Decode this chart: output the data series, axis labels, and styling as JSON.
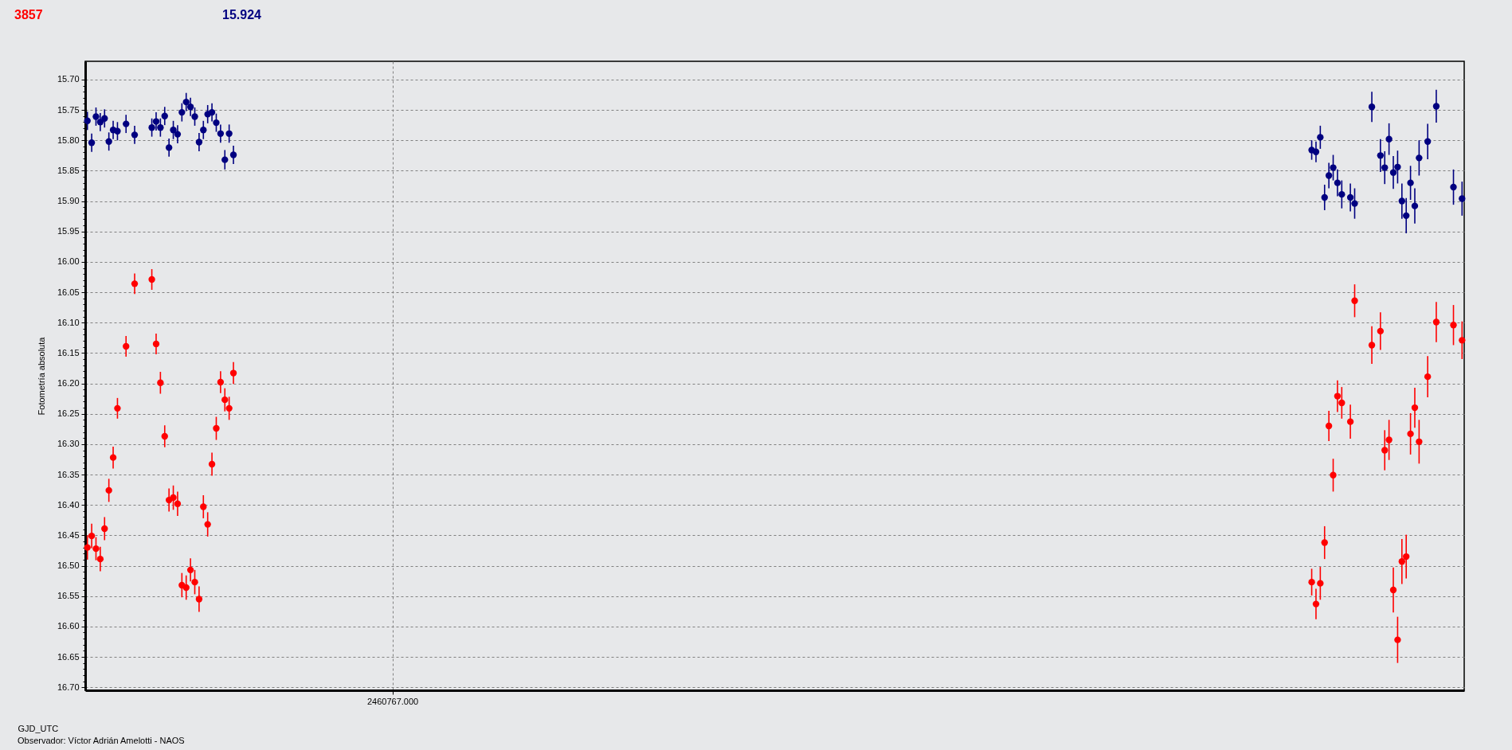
{
  "chart_data": {
    "type": "scatter",
    "ylabel": "Fotometría absoluta",
    "xlabel": "GJD_UTC",
    "annotations": [
      "Observador: Víctor Adrián Amelotti - NAOS"
    ],
    "categories": [
      null,
      null,
      null,
      null,
      null,
      null,
      null,
      null,
      null,
      null,
      null,
      null,
      null,
      null,
      null,
      null,
      null,
      null,
      null,
      null,
      null,
      null,
      null,
      null,
      null,
      null,
      null,
      null,
      null,
      null,
      null,
      null,
      null,
      null,
      null,
      null,
      null,
      null,
      null,
      null,
      null,
      null,
      null,
      null,
      null,
      null,
      null,
      null,
      null,
      null,
      null,
      null,
      null,
      null,
      null,
      null,
      null,
      null,
      null,
      null,
      null,
      null,
      null,
      null,
      null,
      null,
      null,
      null,
      null,
      null,
      null,
      "2460767.000",
      null,
      null,
      null,
      null,
      null,
      null,
      null,
      null,
      null,
      null,
      null,
      null,
      null,
      null,
      null,
      null,
      null,
      null,
      null,
      null,
      null,
      null,
      null,
      null,
      null,
      null,
      null,
      null,
      null,
      null,
      null,
      null,
      null,
      null,
      null,
      null,
      null,
      null,
      null,
      null,
      null,
      null,
      null,
      null,
      null,
      null,
      null,
      null,
      null,
      null,
      null,
      null,
      null,
      null,
      null,
      null,
      null,
      null,
      null,
      null,
      null,
      null,
      null,
      null,
      null,
      null,
      null,
      null,
      null,
      null,
      null,
      null,
      null,
      null,
      null,
      null,
      null,
      null,
      null,
      null,
      null,
      null,
      null,
      null,
      null,
      null,
      null,
      null,
      null,
      null,
      null,
      null,
      null,
      null,
      null,
      null,
      null,
      null,
      null,
      null,
      null,
      null,
      null,
      null,
      null,
      null,
      null,
      null,
      null,
      null,
      null,
      null,
      null,
      null,
      null,
      null,
      null,
      null,
      null,
      null,
      null,
      null,
      null,
      null,
      null,
      null,
      null,
      null,
      null,
      null,
      null,
      null,
      null,
      null,
      null,
      null,
      null,
      null,
      null,
      null,
      null,
      null,
      null,
      null,
      null,
      null,
      null,
      null,
      null,
      null,
      null,
      null,
      null,
      null,
      null,
      null,
      null,
      null,
      null,
      null,
      null,
      null,
      null,
      null,
      null,
      null,
      null,
      null,
      null,
      null,
      null,
      null,
      null,
      null,
      null,
      null,
      null,
      null,
      null,
      null,
      null,
      null,
      null,
      null,
      null,
      null,
      null,
      null,
      null,
      null,
      null,
      null,
      null,
      null,
      null,
      null,
      null,
      null,
      null,
      null,
      null,
      null,
      null,
      null,
      null,
      null,
      null,
      null,
      null,
      null,
      null,
      null,
      null,
      null,
      null,
      null,
      null,
      null,
      null,
      null,
      null,
      null,
      null,
      null,
      null,
      null,
      null,
      null,
      null,
      null,
      null,
      null,
      null,
      null,
      null,
      null,
      null,
      null,
      null,
      null,
      null,
      null,
      null,
      null,
      null,
      null,
      null,
      null,
      null
    ],
    "series": [
      {
        "name": "3857",
        "color": "#ff0000",
        "values": [
          16.47,
          16.451,
          16.472,
          16.489,
          16.439,
          16.376,
          16.322,
          16.241,
          null,
          16.139,
          null,
          16.036,
          null,
          null,
          null,
          16.029,
          16.135,
          16.199,
          16.287,
          16.392,
          16.388,
          16.398,
          16.532,
          16.536,
          16.507,
          16.527,
          16.555,
          16.403,
          16.432,
          16.333,
          16.274,
          16.198,
          16.227,
          16.241,
          16.183,
          null,
          null,
          null,
          null,
          null,
          null,
          null,
          null,
          null,
          null,
          null,
          null,
          null,
          null,
          null,
          null,
          null,
          null,
          null,
          null,
          null,
          null,
          null,
          null,
          null,
          null,
          null,
          null,
          null,
          null,
          null,
          null,
          null,
          null,
          null,
          null,
          null,
          null,
          null,
          null,
          null,
          null,
          null,
          null,
          null,
          null,
          null,
          null,
          null,
          null,
          null,
          null,
          null,
          null,
          null,
          null,
          null,
          null,
          null,
          null,
          null,
          null,
          null,
          null,
          null,
          null,
          null,
          null,
          null,
          null,
          null,
          null,
          null,
          null,
          null,
          null,
          null,
          null,
          null,
          null,
          null,
          null,
          null,
          null,
          null,
          null,
          null,
          null,
          null,
          null,
          null,
          null,
          null,
          null,
          null,
          null,
          null,
          null,
          null,
          null,
          null,
          null,
          null,
          null,
          null,
          null,
          null,
          null,
          null,
          null,
          null,
          null,
          null,
          null,
          null,
          null,
          null,
          null,
          null,
          null,
          null,
          null,
          null,
          null,
          null,
          null,
          null,
          null,
          null,
          null,
          null,
          null,
          null,
          null,
          null,
          null,
          null,
          null,
          null,
          null,
          null,
          null,
          null,
          null,
          null,
          null,
          null,
          null,
          null,
          null,
          null,
          null,
          null,
          null,
          null,
          null,
          null,
          null,
          null,
          null,
          null,
          null,
          null,
          null,
          null,
          null,
          null,
          null,
          null,
          null,
          null,
          null,
          null,
          null,
          null,
          null,
          null,
          null,
          null,
          null,
          null,
          null,
          null,
          null,
          null,
          null,
          null,
          null,
          null,
          null,
          null,
          null,
          null,
          null,
          null,
          null,
          null,
          null,
          null,
          null,
          null,
          null,
          null,
          null,
          null,
          null,
          null,
          null,
          null,
          null,
          null,
          null,
          null,
          null,
          null,
          null,
          null,
          null,
          null,
          null,
          null,
          null,
          null,
          null,
          null,
          null,
          null,
          null,
          null,
          null,
          null,
          null,
          null,
          null,
          null,
          null,
          null,
          null,
          null,
          null,
          null,
          null,
          null,
          null,
          null,
          null,
          null,
          null,
          null,
          null,
          16.527,
          16.563,
          16.529,
          16.462,
          16.27,
          16.351,
          16.221,
          16.232,
          null,
          16.263,
          16.064,
          null,
          null,
          null,
          16.137,
          null,
          16.114,
          16.31,
          16.293,
          16.54,
          16.622,
          16.493,
          16.485,
          16.283,
          16.24,
          16.296,
          null,
          16.189,
          null,
          16.099,
          null,
          null,
          null,
          16.104,
          null,
          16.129
        ],
        "errors": [
          0.02,
          0.02,
          0.019,
          0.02,
          0.019,
          0.019,
          0.018,
          0.017,
          null,
          0.017,
          null,
          0.017,
          null,
          null,
          null,
          0.017,
          0.017,
          0.018,
          0.018,
          0.019,
          0.02,
          0.02,
          0.02,
          0.02,
          0.019,
          0.02,
          0.021,
          0.019,
          0.02,
          0.019,
          0.019,
          0.018,
          0.019,
          0.019,
          0.018,
          null,
          null,
          null,
          null,
          null,
          null,
          null,
          null,
          null,
          null,
          null,
          null,
          null,
          null,
          null,
          null,
          null,
          null,
          null,
          null,
          null,
          null,
          null,
          null,
          null,
          null,
          null,
          null,
          null,
          null,
          null,
          null,
          null,
          null,
          null,
          null,
          null,
          null,
          null,
          null,
          null,
          null,
          null,
          null,
          null,
          null,
          null,
          null,
          null,
          null,
          null,
          null,
          null,
          null,
          null,
          null,
          null,
          null,
          null,
          null,
          null,
          null,
          null,
          null,
          null,
          null,
          null,
          null,
          null,
          null,
          null,
          null,
          null,
          null,
          null,
          null,
          null,
          null,
          null,
          null,
          null,
          null,
          null,
          null,
          null,
          null,
          null,
          null,
          null,
          null,
          null,
          null,
          null,
          null,
          null,
          null,
          null,
          null,
          null,
          null,
          null,
          null,
          null,
          null,
          null,
          null,
          null,
          null,
          null,
          null,
          null,
          null,
          null,
          null,
          null,
          null,
          null,
          null,
          null,
          null,
          null,
          null,
          null,
          null,
          null,
          null,
          null,
          null,
          null,
          null,
          null,
          null,
          null,
          null,
          null,
          null,
          null,
          null,
          null,
          null,
          null,
          null,
          null,
          null,
          null,
          null,
          null,
          null,
          null,
          null,
          null,
          null,
          null,
          null,
          null,
          null,
          null,
          null,
          null,
          null,
          null,
          null,
          null,
          null,
          null,
          null,
          null,
          null,
          null,
          null,
          null,
          null,
          null,
          null,
          null,
          null,
          null,
          null,
          null,
          null,
          null,
          null,
          null,
          null,
          null,
          null,
          null,
          null,
          null,
          null,
          null,
          null,
          null,
          null,
          null,
          null,
          null,
          null,
          null,
          null,
          null,
          null,
          null,
          null,
          null,
          null,
          null,
          null,
          null,
          null,
          null,
          null,
          null,
          null,
          null,
          null,
          null,
          null,
          null,
          null,
          null,
          null,
          null,
          null,
          null,
          null,
          null,
          null,
          null,
          null,
          null,
          null,
          null,
          null,
          null,
          null,
          null,
          null,
          null,
          null,
          null,
          null,
          null,
          null,
          null,
          null,
          null,
          null,
          null,
          null,
          0.022,
          0.025,
          0.027,
          0.027,
          0.025,
          0.027,
          0.026,
          0.026,
          null,
          0.028,
          0.027,
          null,
          null,
          null,
          0.031,
          null,
          0.031,
          0.033,
          0.033,
          0.037,
          0.038,
          0.037,
          0.036,
          0.034,
          0.033,
          0.036,
          null,
          0.034,
          null,
          0.033,
          null,
          null,
          null,
          0.033,
          null,
          0.031
        ]
      },
      {
        "name": "15.924",
        "color": "#000080",
        "values": [
          15.768,
          15.804,
          15.761,
          15.77,
          15.764,
          15.802,
          15.783,
          15.785,
          null,
          15.773,
          null,
          15.791,
          null,
          null,
          null,
          15.779,
          15.769,
          15.779,
          15.76,
          15.812,
          15.783,
          15.79,
          15.754,
          15.737,
          15.745,
          15.761,
          15.803,
          15.783,
          15.757,
          15.754,
          15.771,
          15.789,
          15.832,
          15.789,
          15.824,
          null,
          null,
          null,
          null,
          null,
          null,
          null,
          null,
          null,
          null,
          null,
          null,
          null,
          null,
          null,
          null,
          null,
          null,
          null,
          null,
          null,
          null,
          null,
          null,
          null,
          null,
          null,
          null,
          null,
          null,
          null,
          null,
          null,
          null,
          null,
          null,
          null,
          null,
          null,
          null,
          null,
          null,
          null,
          null,
          null,
          null,
          null,
          null,
          null,
          null,
          null,
          null,
          null,
          null,
          null,
          null,
          null,
          null,
          null,
          null,
          null,
          null,
          null,
          null,
          null,
          null,
          null,
          null,
          null,
          null,
          null,
          null,
          null,
          null,
          null,
          null,
          null,
          null,
          null,
          null,
          null,
          null,
          null,
          null,
          null,
          null,
          null,
          null,
          null,
          null,
          null,
          null,
          null,
          null,
          null,
          null,
          null,
          null,
          null,
          null,
          null,
          null,
          null,
          null,
          null,
          null,
          null,
          null,
          null,
          null,
          null,
          null,
          null,
          null,
          null,
          null,
          null,
          null,
          null,
          null,
          null,
          null,
          null,
          null,
          null,
          null,
          null,
          null,
          null,
          null,
          null,
          null,
          null,
          null,
          null,
          null,
          null,
          null,
          null,
          null,
          null,
          null,
          null,
          null,
          null,
          null,
          null,
          null,
          null,
          null,
          null,
          null,
          null,
          null,
          null,
          null,
          null,
          null,
          null,
          null,
          null,
          null,
          null,
          null,
          null,
          null,
          null,
          null,
          null,
          null,
          null,
          null,
          null,
          null,
          null,
          null,
          null,
          null,
          null,
          null,
          null,
          null,
          null,
          null,
          null,
          null,
          null,
          null,
          null,
          null,
          null,
          null,
          null,
          null,
          null,
          null,
          null,
          null,
          null,
          null,
          null,
          null,
          null,
          null,
          null,
          null,
          null,
          null,
          null,
          null,
          null,
          null,
          null,
          null,
          null,
          null,
          null,
          null,
          null,
          null,
          null,
          null,
          null,
          null,
          null,
          null,
          null,
          null,
          null,
          null,
          null,
          null,
          null,
          null,
          null,
          null,
          null,
          null,
          null,
          null,
          null,
          null,
          null,
          null,
          null,
          null,
          null,
          null,
          null,
          null,
          15.816,
          15.819,
          15.795,
          15.894,
          15.858,
          15.845,
          15.87,
          15.889,
          null,
          15.894,
          15.904,
          null,
          null,
          null,
          15.745,
          null,
          15.825,
          15.845,
          15.798,
          15.853,
          15.844,
          15.9,
          15.924,
          15.87,
          15.908,
          15.829,
          null,
          15.802,
          null,
          15.744,
          null,
          null,
          null,
          15.877,
          null,
          15.896
        ],
        "errors": [
          0.015,
          0.015,
          0.015,
          0.015,
          0.015,
          0.015,
          0.015,
          0.015,
          null,
          0.015,
          null,
          0.015,
          null,
          null,
          null,
          0.015,
          0.015,
          0.015,
          0.015,
          0.015,
          0.015,
          0.015,
          0.015,
          0.015,
          0.015,
          0.015,
          0.015,
          0.015,
          0.015,
          0.015,
          0.015,
          0.015,
          0.016,
          0.015,
          0.015,
          null,
          null,
          null,
          null,
          null,
          null,
          null,
          null,
          null,
          null,
          null,
          null,
          null,
          null,
          null,
          null,
          null,
          null,
          null,
          null,
          null,
          null,
          null,
          null,
          null,
          null,
          null,
          null,
          null,
          null,
          null,
          null,
          null,
          null,
          null,
          null,
          null,
          null,
          null,
          null,
          null,
          null,
          null,
          null,
          null,
          null,
          null,
          null,
          null,
          null,
          null,
          null,
          null,
          null,
          null,
          null,
          null,
          null,
          null,
          null,
          null,
          null,
          null,
          null,
          null,
          null,
          null,
          null,
          null,
          null,
          null,
          null,
          null,
          null,
          null,
          null,
          null,
          null,
          null,
          null,
          null,
          null,
          null,
          null,
          null,
          null,
          null,
          null,
          null,
          null,
          null,
          null,
          null,
          null,
          null,
          null,
          null,
          null,
          null,
          null,
          null,
          null,
          null,
          null,
          null,
          null,
          null,
          null,
          null,
          null,
          null,
          null,
          null,
          null,
          null,
          null,
          null,
          null,
          null,
          null,
          null,
          null,
          null,
          null,
          null,
          null,
          null,
          null,
          null,
          null,
          null,
          null,
          null,
          null,
          null,
          null,
          null,
          null,
          null,
          null,
          null,
          null,
          null,
          null,
          null,
          null,
          null,
          null,
          null,
          null,
          null,
          null,
          null,
          null,
          null,
          null,
          null,
          null,
          null,
          null,
          null,
          null,
          null,
          null,
          null,
          null,
          null,
          null,
          null,
          null,
          null,
          null,
          null,
          null,
          null,
          null,
          null,
          null,
          null,
          null,
          null,
          null,
          null,
          null,
          null,
          null,
          null,
          null,
          null,
          null,
          null,
          null,
          null,
          null,
          null,
          null,
          null,
          null,
          null,
          null,
          null,
          null,
          null,
          null,
          null,
          null,
          null,
          null,
          null,
          null,
          null,
          null,
          null,
          null,
          null,
          null,
          null,
          null,
          null,
          null,
          null,
          null,
          null,
          null,
          null,
          null,
          null,
          null,
          null,
          null,
          null,
          null,
          null,
          null,
          null,
          null,
          null,
          null,
          null,
          null,
          null,
          null,
          null,
          null,
          null,
          null,
          null,
          null,
          null,
          null,
          0.016,
          0.017,
          0.019,
          0.021,
          0.021,
          0.021,
          0.022,
          0.023,
          null,
          0.023,
          0.025,
          null,
          null,
          null,
          0.025,
          null,
          0.027,
          0.027,
          0.026,
          0.027,
          0.027,
          0.029,
          0.029,
          0.028,
          0.029,
          0.029,
          null,
          0.029,
          null,
          0.027,
          null,
          null,
          null,
          0.029,
          null,
          0.028
        ]
      }
    ],
    "marker": "circle",
    "grid": true,
    "legend": "top left",
    "ylim": [
      16.705,
      15.67
    ],
    "yticks": [
      {
        "value": 15.7,
        "label": "15.70"
      },
      {
        "value": 15.71,
        "label": null
      },
      {
        "value": 15.72,
        "label": null
      },
      {
        "value": 15.73,
        "label": null
      },
      {
        "value": 15.74,
        "label": null
      },
      {
        "value": 15.75,
        "label": "15.75"
      },
      {
        "value": 15.76,
        "label": null
      },
      {
        "value": 15.77,
        "label": null
      },
      {
        "value": 15.78,
        "label": null
      },
      {
        "value": 15.79,
        "label": null
      },
      {
        "value": 15.8,
        "label": "15.80"
      },
      {
        "value": 15.81,
        "label": null
      },
      {
        "value": 15.82,
        "label": null
      },
      {
        "value": 15.83,
        "label": null
      },
      {
        "value": 15.84,
        "label": null
      },
      {
        "value": 15.85,
        "label": "15.85"
      },
      {
        "value": 15.86,
        "label": null
      },
      {
        "value": 15.87,
        "label": null
      },
      {
        "value": 15.88,
        "label": null
      },
      {
        "value": 15.89,
        "label": null
      },
      {
        "value": 15.9,
        "label": "15.90"
      },
      {
        "value": 15.91,
        "label": null
      },
      {
        "value": 15.92,
        "label": null
      },
      {
        "value": 15.93,
        "label": null
      },
      {
        "value": 15.94,
        "label": null
      },
      {
        "value": 15.95,
        "label": "15.95"
      },
      {
        "value": 15.96,
        "label": null
      },
      {
        "value": 15.97,
        "label": null
      },
      {
        "value": 15.98,
        "label": null
      },
      {
        "value": 15.99,
        "label": null
      },
      {
        "value": 16.0,
        "label": "16.00"
      },
      {
        "value": 16.01,
        "label": null
      },
      {
        "value": 16.02,
        "label": null
      },
      {
        "value": 16.03,
        "label": null
      },
      {
        "value": 16.04,
        "label": null
      },
      {
        "value": 16.05,
        "label": "16.05"
      },
      {
        "value": 16.06,
        "label": null
      },
      {
        "value": 16.07,
        "label": null
      },
      {
        "value": 16.08,
        "label": null
      },
      {
        "value": 16.09,
        "label": null
      },
      {
        "value": 16.1,
        "label": "16.10"
      },
      {
        "value": 16.11,
        "label": null
      },
      {
        "value": 16.12,
        "label": null
      },
      {
        "value": 16.13,
        "label": null
      },
      {
        "value": 16.14,
        "label": null
      },
      {
        "value": 16.15,
        "label": "16.15"
      },
      {
        "value": 16.16,
        "label": null
      },
      {
        "value": 16.17,
        "label": null
      },
      {
        "value": 16.18,
        "label": null
      },
      {
        "value": 16.19,
        "label": null
      },
      {
        "value": 16.2,
        "label": "16.20"
      },
      {
        "value": 16.21,
        "label": null
      },
      {
        "value": 16.22,
        "label": null
      },
      {
        "value": 16.23,
        "label": null
      },
      {
        "value": 16.24,
        "label": null
      },
      {
        "value": 16.25,
        "label": "16.25"
      },
      {
        "value": 16.26,
        "label": null
      },
      {
        "value": 16.27,
        "label": null
      },
      {
        "value": 16.28,
        "label": null
      },
      {
        "value": 16.29,
        "label": null
      },
      {
        "value": 16.3,
        "label": "16.30"
      },
      {
        "value": 16.31,
        "label": null
      },
      {
        "value": 16.32,
        "label": null
      },
      {
        "value": 16.33,
        "label": null
      },
      {
        "value": 16.34,
        "label": null
      },
      {
        "value": 16.35,
        "label": "16.35"
      },
      {
        "value": 16.36,
        "label": null
      },
      {
        "value": 16.37,
        "label": null
      },
      {
        "value": 16.38,
        "label": null
      },
      {
        "value": 16.39,
        "label": null
      },
      {
        "value": 16.4,
        "label": "16.40"
      },
      {
        "value": 16.41,
        "label": null
      },
      {
        "value": 16.42,
        "label": null
      },
      {
        "value": 16.43,
        "label": null
      },
      {
        "value": 16.44,
        "label": null
      },
      {
        "value": 16.45,
        "label": "16.45"
      },
      {
        "value": 16.46,
        "label": null
      },
      {
        "value": 16.47,
        "label": null
      },
      {
        "value": 16.48,
        "label": null
      },
      {
        "value": 16.49,
        "label": null
      },
      {
        "value": 16.5,
        "label": "16.50"
      },
      {
        "value": 16.51,
        "label": null
      },
      {
        "value": 16.52,
        "label": null
      },
      {
        "value": 16.53,
        "label": null
      },
      {
        "value": 16.54,
        "label": null
      },
      {
        "value": 16.55,
        "label": "16.55"
      },
      {
        "value": 16.56,
        "label": null
      },
      {
        "value": 16.57,
        "label": null
      },
      {
        "value": 16.58,
        "label": null
      },
      {
        "value": 16.59,
        "label": null
      },
      {
        "value": 16.6,
        "label": "16.60"
      },
      {
        "value": 16.61,
        "label": null
      },
      {
        "value": 16.62,
        "label": null
      },
      {
        "value": 16.63,
        "label": null
      },
      {
        "value": 16.64,
        "label": null
      },
      {
        "value": 16.65,
        "label": "16.65"
      },
      {
        "value": 16.66,
        "label": null
      },
      {
        "value": 16.67,
        "label": null
      },
      {
        "value": 16.68,
        "label": null
      },
      {
        "value": 16.69,
        "label": null
      },
      {
        "value": 16.7,
        "label": "16.70"
      }
    ]
  }
}
